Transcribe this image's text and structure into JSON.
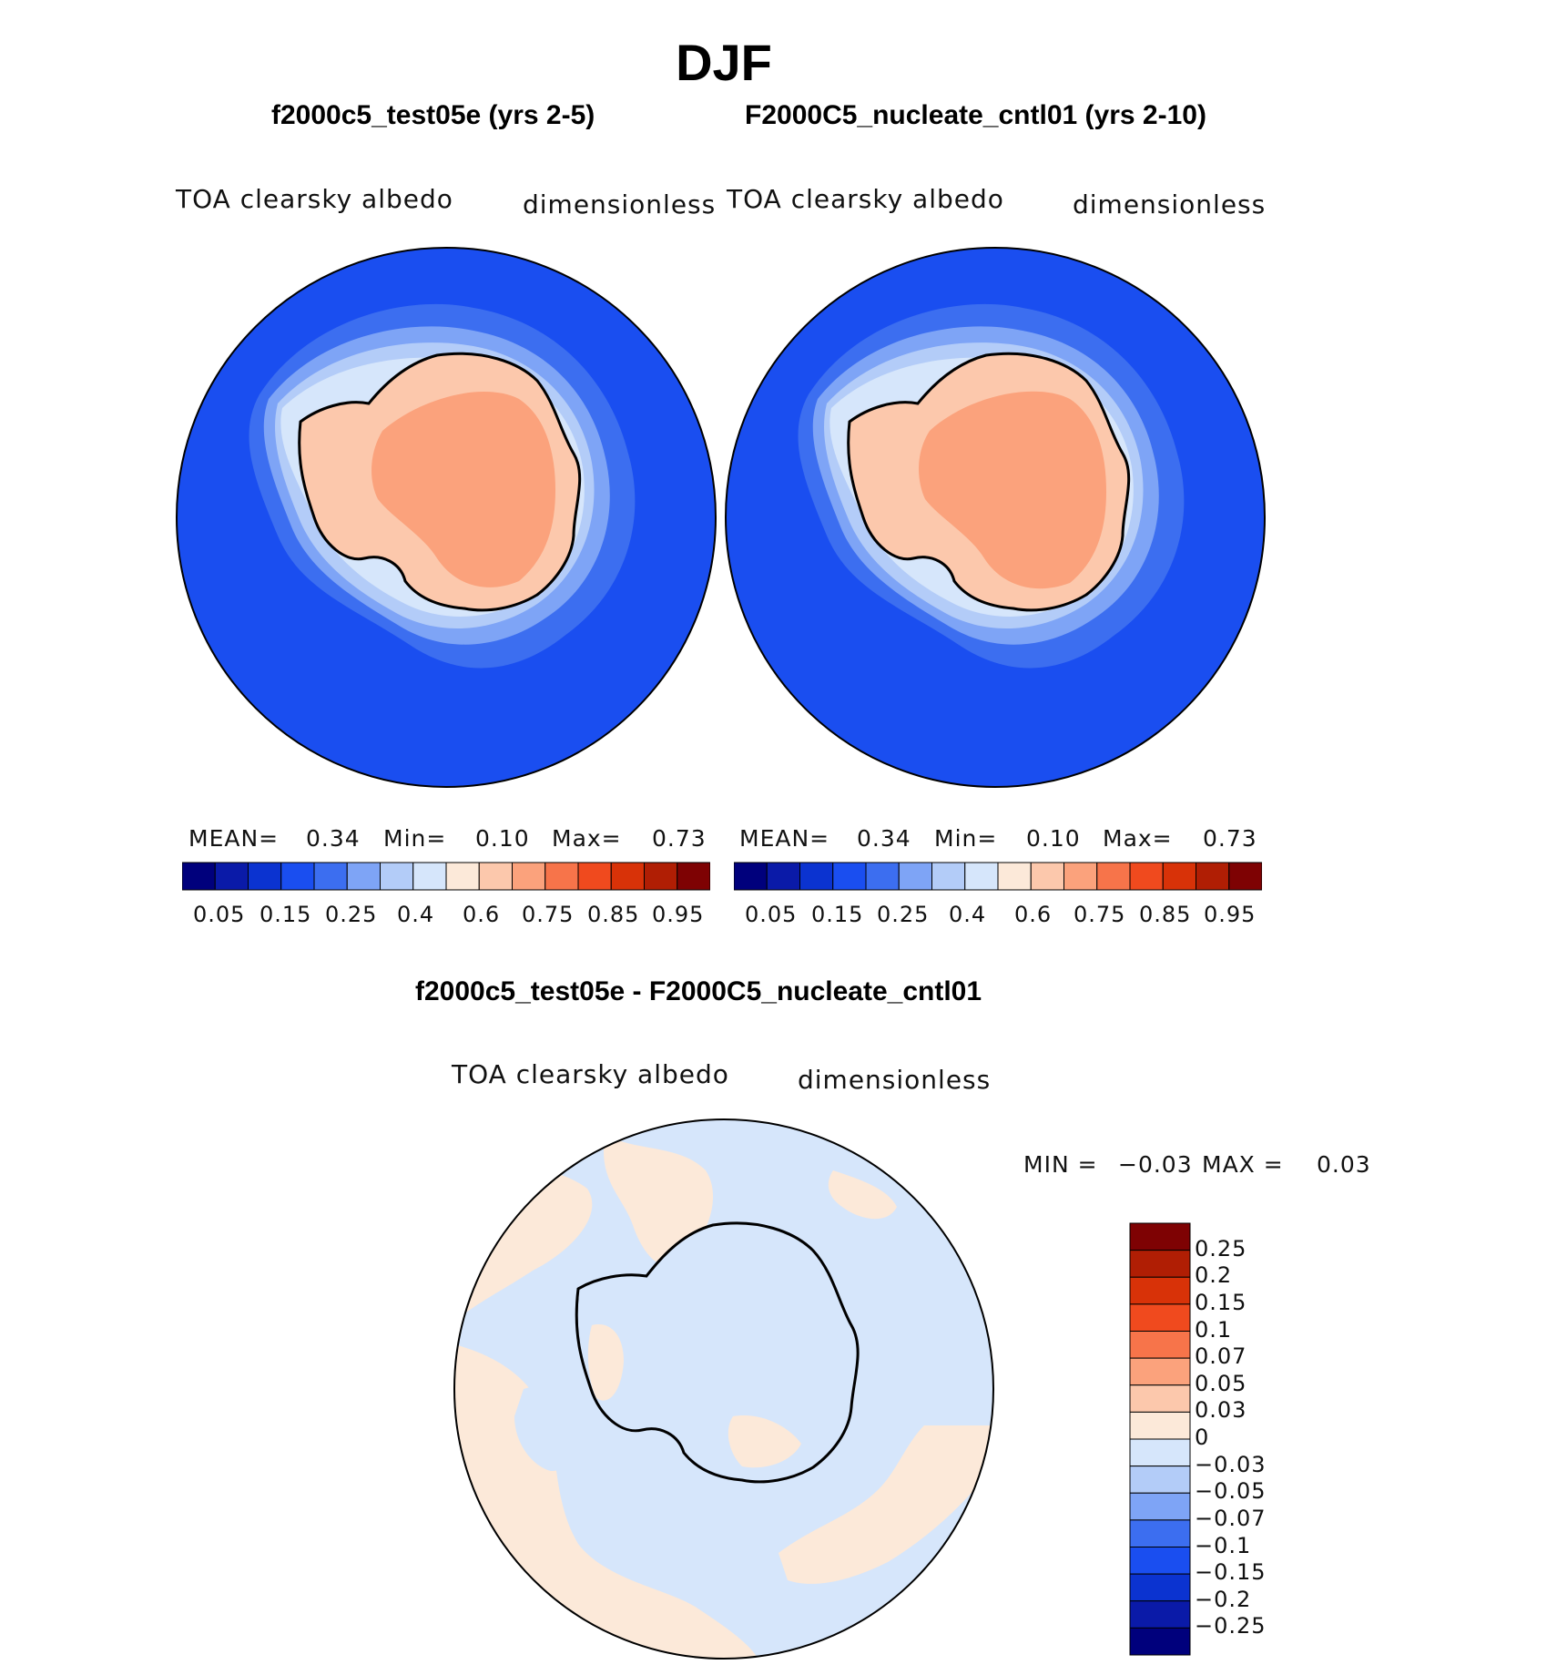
{
  "figure": {
    "title": "DJF"
  },
  "panels": [
    {
      "title": "f2000c5_test05e (yrs 2-5)",
      "variable": "TOA clearsky albedo",
      "units": "dimensionless",
      "stats": {
        "mean_label": "MEAN=",
        "mean": "0.34",
        "min_label": "Min=",
        "min": "0.10",
        "max_label": "Max=",
        "max": "0.73"
      }
    },
    {
      "title": "F2000C5_nucleate_cntl01 (yrs 2-10)",
      "variable": "TOA clearsky albedo",
      "units": "dimensionless",
      "stats": {
        "mean_label": "MEAN=",
        "mean": "0.34",
        "min_label": "Min=",
        "min": "0.10",
        "max_label": "Max=",
        "max": "0.73"
      }
    }
  ],
  "abs_colorbar": {
    "labels": [
      "0.05",
      "0.15",
      "0.25",
      "0.4",
      "0.6",
      "0.75",
      "0.85",
      "0.95"
    ],
    "colors": [
      "#00007c",
      "#0a1aa8",
      "#0b33d0",
      "#1a4ef0",
      "#3c6ef0",
      "#7ea4f6",
      "#b3ccf8",
      "#d6e6fb",
      "#fce9d9",
      "#fcc8ac",
      "#fba27c",
      "#f7744a",
      "#f04a1e",
      "#d83208",
      "#b01e04",
      "#7e0203"
    ]
  },
  "difference": {
    "title": "f2000c5_test05e - F2000C5_nucleate_cntl01",
    "variable": "TOA clearsky albedo",
    "units": "dimensionless",
    "min_label": "MIN =",
    "min": "−0.03",
    "max_label": "MAX =",
    "max": "0.03",
    "colorbar_labels": [
      "0.25",
      "0.2",
      "0.15",
      "0.1",
      "0.07",
      "0.05",
      "0.03",
      "0",
      "−0.03",
      "−0.05",
      "−0.07",
      "−0.1",
      "−0.15",
      "−0.2",
      "−0.25"
    ],
    "colorbar_colors": [
      "#7e0203",
      "#b01e04",
      "#d83208",
      "#f04a1e",
      "#f7744a",
      "#fba27c",
      "#fcc8ac",
      "#fce9d9",
      "#d6e6fb",
      "#b3ccf8",
      "#7ea4f6",
      "#3c6ef0",
      "#1a4ef0",
      "#0b33d0",
      "#0a1aa8",
      "#00007c"
    ]
  },
  "map_colors": {
    "ocean": "#1a4ef0",
    "ocean_mid": "#3c6ef0",
    "ocean_light": "#7ea4f6",
    "ice_pale": "#b3ccf8",
    "ice_vpale": "#d6e6fb",
    "land_light": "#fce9d9",
    "land": "#fcc8ac",
    "land_high": "#fba27c",
    "diff_pos": "#fce9d9",
    "diff_neg": "#d6e6fb"
  }
}
